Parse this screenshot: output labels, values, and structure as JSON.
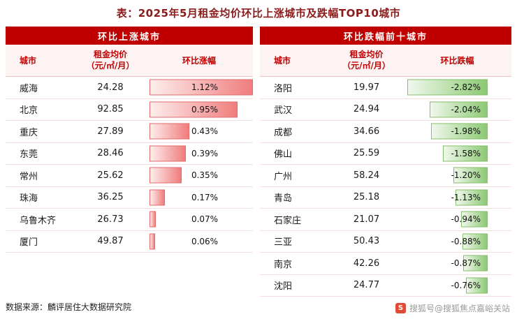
{
  "title": "表：2025年5月租金均价环比上涨城市及跌幅TOP10城市",
  "colors": {
    "header_bg": "#c00000",
    "header_text": "#ffffff",
    "column_header_text": "#c00000",
    "up_bar": "#f07d7d",
    "down_bar": "#8cc973"
  },
  "left_table": {
    "header": "环比上涨城市",
    "col_city": "城市",
    "col_price_line1": "租金均价",
    "col_price_line2": "（元/㎡/月）",
    "col_change": "环比涨幅",
    "rows": [
      {
        "city": "威海",
        "price": "24.28",
        "pct": "1.12%",
        "value": 1.12
      },
      {
        "city": "北京",
        "price": "92.85",
        "pct": "0.95%",
        "value": 0.95
      },
      {
        "city": "重庆",
        "price": "27.89",
        "pct": "0.43%",
        "value": 0.43
      },
      {
        "city": "东莞",
        "price": "28.46",
        "pct": "0.39%",
        "value": 0.39
      },
      {
        "city": "常州",
        "price": "25.62",
        "pct": "0.35%",
        "value": 0.35
      },
      {
        "city": "珠海",
        "price": "36.25",
        "pct": "0.17%",
        "value": 0.17
      },
      {
        "city": "乌鲁木齐",
        "price": "26.73",
        "pct": "0.07%",
        "value": 0.07
      },
      {
        "city": "厦门",
        "price": "49.87",
        "pct": "0.06%",
        "value": 0.06
      }
    ]
  },
  "right_table": {
    "header": "环比跌幅前十城市",
    "col_city": "城市",
    "col_price_line1": "租金均价",
    "col_price_line2": "（元/㎡/月）",
    "col_change": "环比跌幅",
    "rows": [
      {
        "city": "洛阳",
        "price": "19.97",
        "pct": "-2.82%",
        "value": -2.82
      },
      {
        "city": "武汉",
        "price": "24.94",
        "pct": "-2.04%",
        "value": -2.04
      },
      {
        "city": "成都",
        "price": "34.66",
        "pct": "-1.98%",
        "value": -1.98
      },
      {
        "city": "佛山",
        "price": "25.59",
        "pct": "-1.58%",
        "value": -1.58
      },
      {
        "city": "广州",
        "price": "58.24",
        "pct": "-1.20%",
        "value": -1.2
      },
      {
        "city": "青岛",
        "price": "25.18",
        "pct": "-1.13%",
        "value": -1.13
      },
      {
        "city": "石家庄",
        "price": "21.07",
        "pct": "-0.94%",
        "value": -0.94
      },
      {
        "city": "三亚",
        "price": "50.43",
        "pct": "-0.88%",
        "value": -0.88
      },
      {
        "city": "南京",
        "price": "42.26",
        "pct": "-0.87%",
        "value": -0.87
      },
      {
        "city": "沈阳",
        "price": "24.77",
        "pct": "-0.76%",
        "value": -0.76
      }
    ]
  },
  "footer": {
    "source": "数据来源：麟评居住大数据研究院",
    "watermark": "搜狐号@搜狐焦点嘉峪关站",
    "watermark_icon": "S"
  },
  "chart_data": [
    {
      "type": "bar",
      "title": "环比上涨城市",
      "categories": [
        "威海",
        "北京",
        "重庆",
        "东莞",
        "常州",
        "珠海",
        "乌鲁木齐",
        "厦门"
      ],
      "series": [
        {
          "name": "租金均价（元/㎡/月）",
          "values": [
            24.28,
            92.85,
            27.89,
            28.46,
            25.62,
            36.25,
            26.73,
            49.87
          ]
        },
        {
          "name": "环比涨幅(%)",
          "values": [
            1.12,
            0.95,
            0.43,
            0.39,
            0.35,
            0.17,
            0.07,
            0.06
          ]
        }
      ],
      "legend_position": "none",
      "grid": false
    },
    {
      "type": "bar",
      "title": "环比跌幅前十城市",
      "categories": [
        "洛阳",
        "武汉",
        "成都",
        "佛山",
        "广州",
        "青岛",
        "石家庄",
        "三亚",
        "南京",
        "沈阳"
      ],
      "series": [
        {
          "name": "租金均价（元/㎡/月）",
          "values": [
            19.97,
            24.94,
            34.66,
            25.59,
            58.24,
            25.18,
            21.07,
            50.43,
            42.26,
            24.77
          ]
        },
        {
          "name": "环比跌幅(%)",
          "values": [
            -2.82,
            -2.04,
            -1.98,
            -1.58,
            -1.2,
            -1.13,
            -0.94,
            -0.88,
            -0.87,
            -0.76
          ]
        }
      ],
      "legend_position": "none",
      "grid": false
    }
  ]
}
